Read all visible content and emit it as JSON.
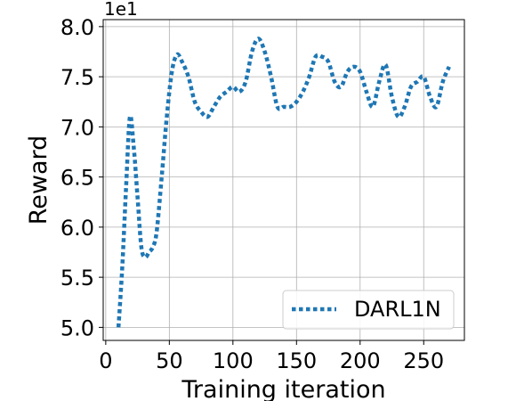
{
  "chart_data": {
    "type": "line",
    "title": "",
    "xlabel": "Training iteration",
    "ylabel": "Reward",
    "y_offset_label": "1e1",
    "xlim": [
      -2,
      282
    ],
    "ylim": [
      4.87,
      8.07
    ],
    "x_ticks": [
      0,
      50,
      100,
      150,
      200,
      250
    ],
    "x_tick_labels": [
      "0",
      "50",
      "100",
      "150",
      "200",
      "250"
    ],
    "y_ticks": [
      5.0,
      5.5,
      6.0,
      6.5,
      7.0,
      7.5,
      8.0
    ],
    "y_tick_labels": [
      "5.0",
      "5.5",
      "6.0",
      "6.5",
      "7.0",
      "7.5",
      "8.0"
    ],
    "grid": true,
    "legend_position": "lower-right",
    "series": [
      {
        "name": "DARL1N",
        "color": "#1f77b4",
        "style": "dotted",
        "x": [
          10,
          13,
          16,
          19,
          22,
          25,
          28,
          31,
          34,
          37,
          40,
          44,
          48,
          52,
          56,
          60,
          65,
          70,
          75,
          80,
          85,
          90,
          95,
          100,
          105,
          110,
          115,
          120,
          125,
          130,
          135,
          140,
          145,
          150,
          155,
          160,
          165,
          170,
          175,
          180,
          185,
          190,
          195,
          200,
          205,
          210,
          215,
          220,
          225,
          230,
          235,
          240,
          245,
          250,
          255,
          260,
          265,
          270
        ],
        "y": [
          5.0,
          5.6,
          6.4,
          7.1,
          6.8,
          6.3,
          5.8,
          5.7,
          5.75,
          5.8,
          5.95,
          6.5,
          7.1,
          7.55,
          7.72,
          7.65,
          7.5,
          7.25,
          7.15,
          7.1,
          7.2,
          7.3,
          7.35,
          7.4,
          7.35,
          7.45,
          7.75,
          7.88,
          7.75,
          7.5,
          7.2,
          7.2,
          7.2,
          7.25,
          7.35,
          7.5,
          7.7,
          7.7,
          7.65,
          7.45,
          7.4,
          7.55,
          7.6,
          7.55,
          7.35,
          7.2,
          7.45,
          7.62,
          7.3,
          7.1,
          7.2,
          7.4,
          7.45,
          7.5,
          7.3,
          7.2,
          7.45,
          7.6
        ]
      }
    ]
  }
}
